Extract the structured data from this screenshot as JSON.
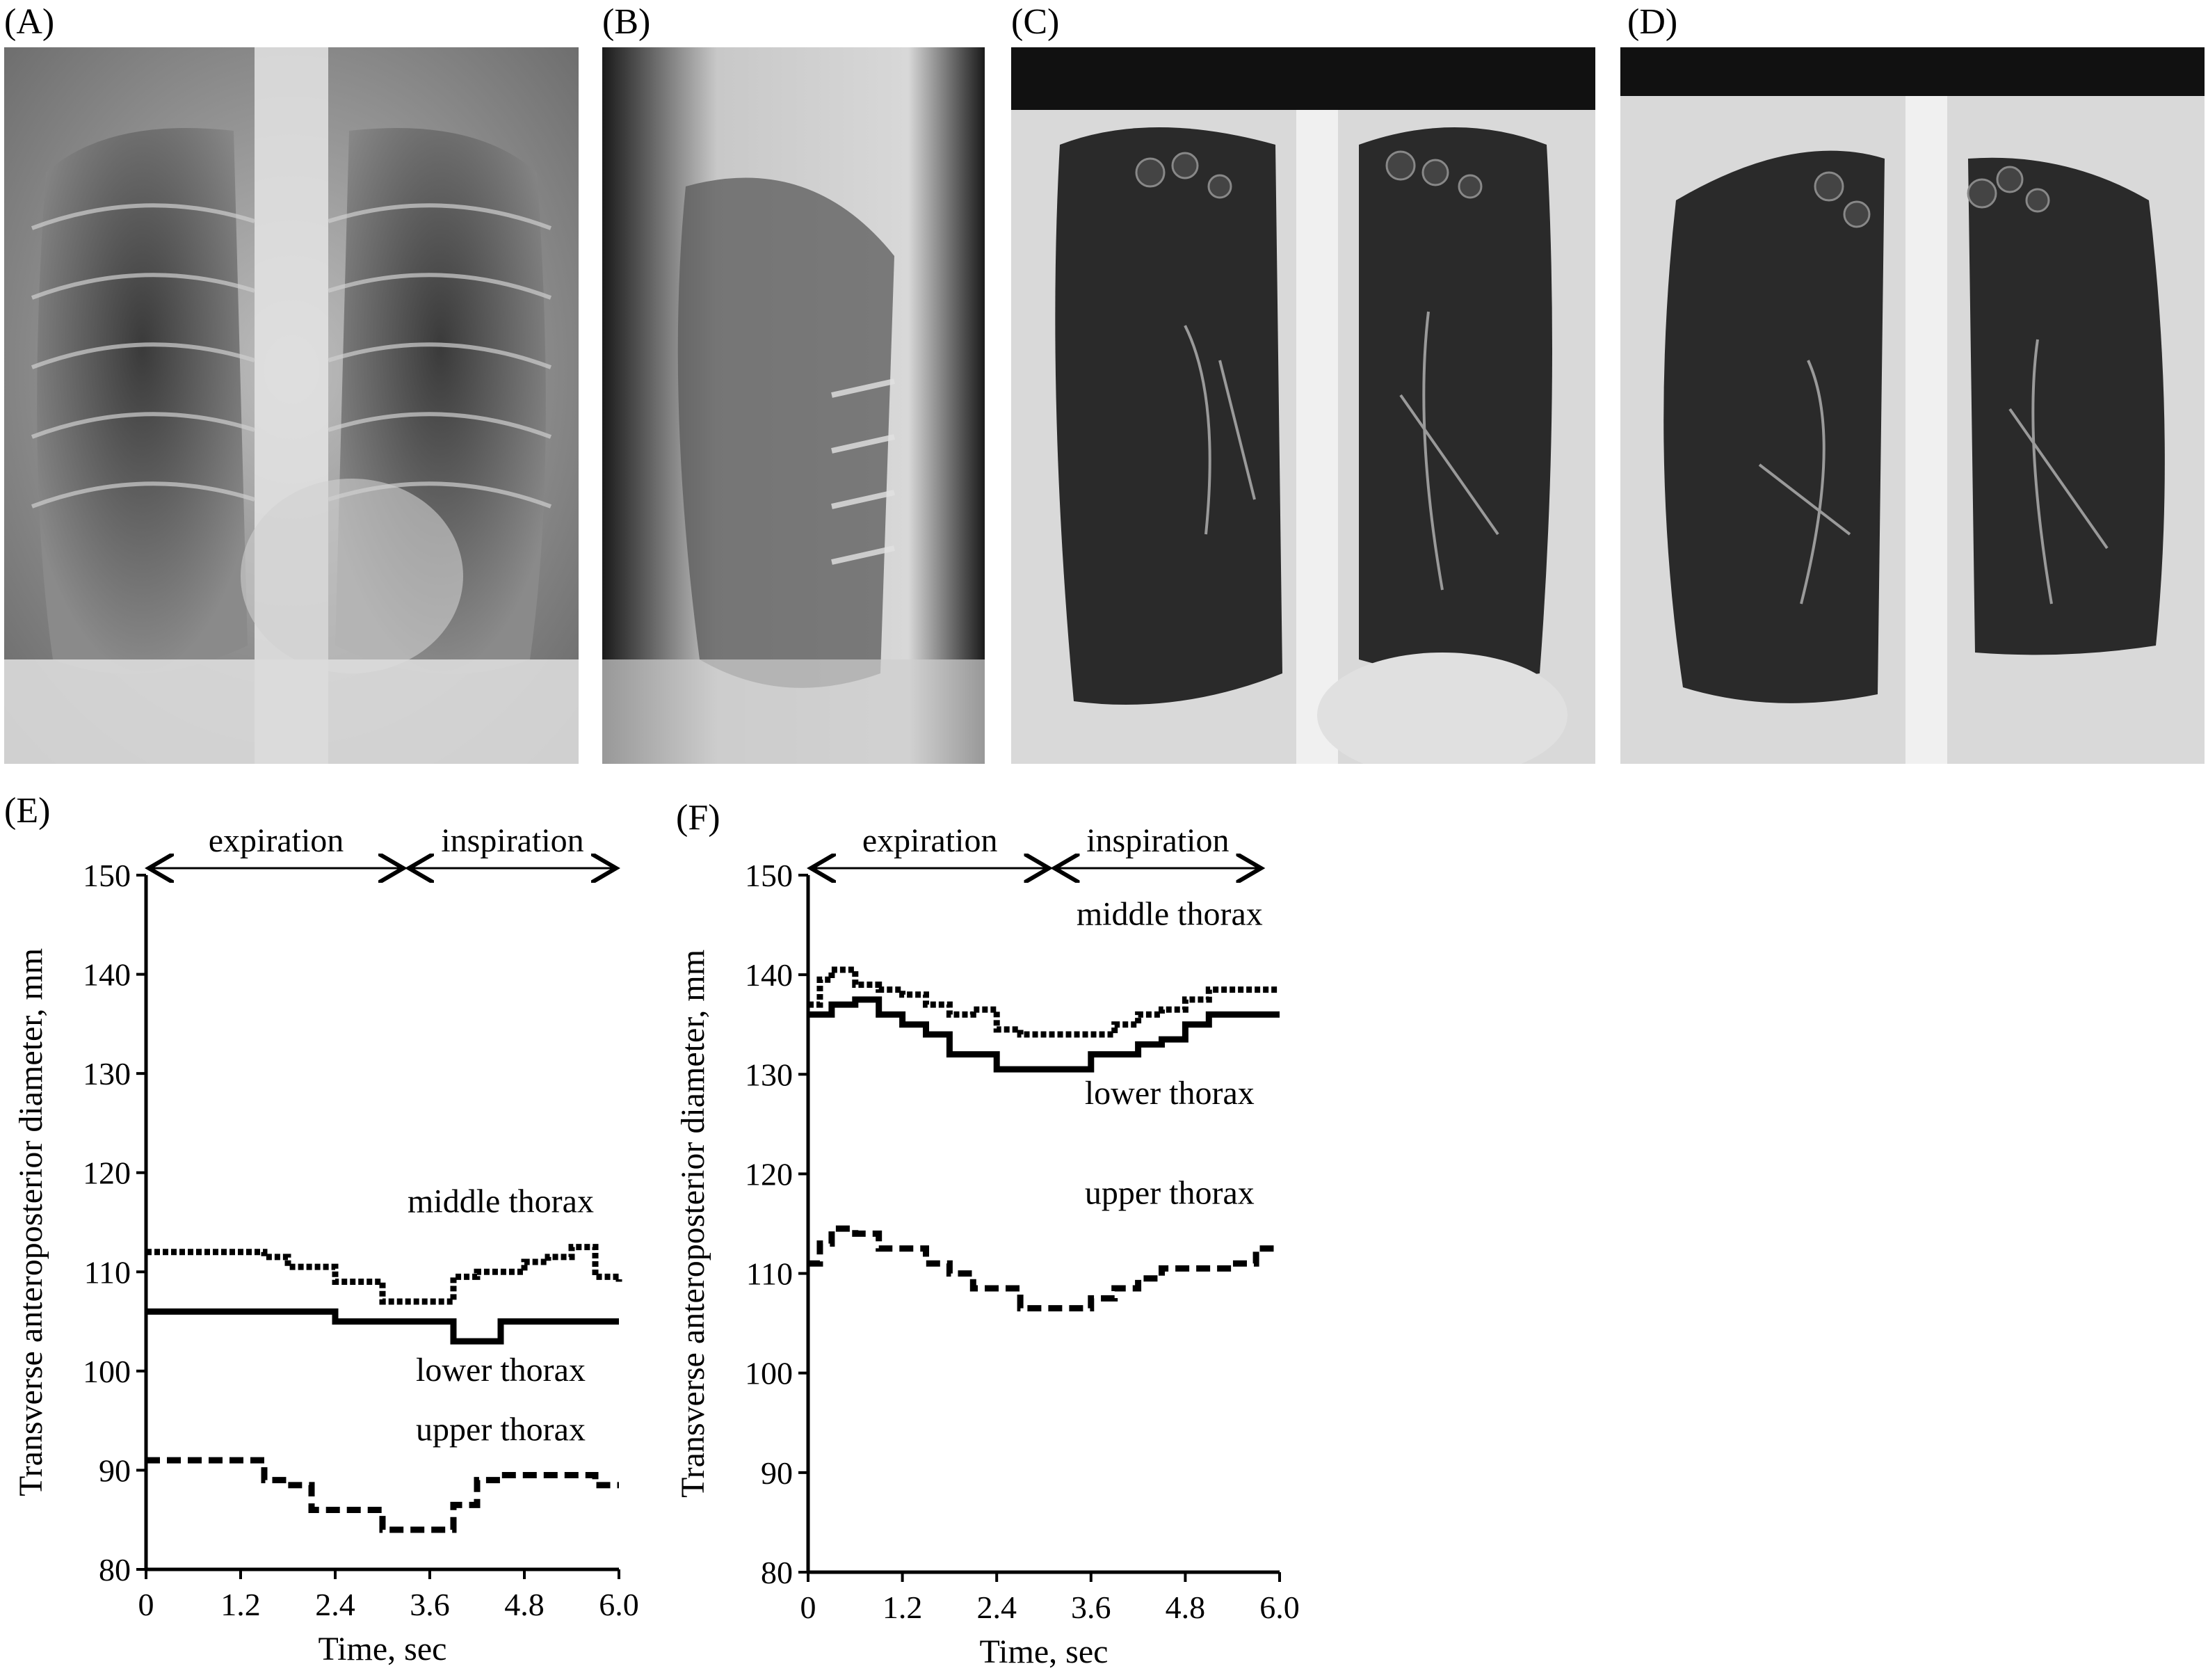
{
  "panels": {
    "a": "(A)",
    "b": "(B)",
    "c": "(C)",
    "d": "(D)",
    "e": "(E)",
    "f": "(F)"
  },
  "colors": {
    "xray_dark": "#1a1a1a",
    "xray_light": "#e6e6e6",
    "ct_lung": "#2a2a2a",
    "ct_tissue": "#d9d9d9"
  },
  "chart_data": [
    {
      "panel": "(E)",
      "type": "line",
      "xlabel": "Time, sec",
      "ylabel": "Transverse anteroposterior diameter, mm",
      "xlim": [
        0,
        6.0
      ],
      "ylim": [
        80,
        150
      ],
      "xticks": [
        "0",
        "1.2",
        "2.4",
        "3.6",
        "4.8",
        "6.0"
      ],
      "yticks": [
        "80",
        "90",
        "100",
        "110",
        "120",
        "130",
        "140",
        "150"
      ],
      "phases": [
        {
          "label": "expiration",
          "x0": 0,
          "x1": 3.3
        },
        {
          "label": "inspiration",
          "x0": 3.3,
          "x1": 6.0
        }
      ],
      "series": [
        {
          "name": "middle thorax",
          "style": "dotted",
          "x": [
            0,
            0.6,
            1.2,
            1.5,
            1.8,
            2.1,
            2.4,
            2.7,
            3.0,
            3.3,
            3.6,
            3.9,
            4.2,
            4.5,
            4.8,
            5.1,
            5.4,
            5.7,
            6.0
          ],
          "y": [
            112,
            112,
            112,
            111.5,
            110.5,
            110.5,
            109,
            109,
            107,
            107,
            107,
            109.5,
            110,
            110,
            111,
            111.5,
            112.5,
            109.5,
            109
          ]
        },
        {
          "name": "lower thorax",
          "style": "solid",
          "x": [
            0,
            0.6,
            1.2,
            1.8,
            2.1,
            2.4,
            2.7,
            3.0,
            3.3,
            3.6,
            3.9,
            4.2,
            4.5,
            4.8,
            5.4,
            6.0
          ],
          "y": [
            106,
            106,
            106,
            106,
            106,
            105,
            105,
            105,
            105,
            105,
            103,
            103,
            105,
            105,
            105,
            105
          ]
        },
        {
          "name": "upper thorax",
          "style": "dashed",
          "x": [
            0,
            0.6,
            1.2,
            1.5,
            1.8,
            2.1,
            2.4,
            2.7,
            3.0,
            3.3,
            3.6,
            3.9,
            4.2,
            4.5,
            4.8,
            5.1,
            5.4,
            5.7,
            6.0
          ],
          "y": [
            91,
            91,
            91,
            89,
            88.5,
            86,
            86,
            86,
            84,
            84,
            84,
            86.5,
            89,
            89.5,
            89.5,
            89.5,
            89.5,
            88.5,
            88.5
          ]
        }
      ],
      "annotations": [
        {
          "text": "middle thorax",
          "x": 4.5,
          "y": 116
        },
        {
          "text": "lower thorax",
          "x": 4.5,
          "y": 99
        },
        {
          "text": "upper thorax",
          "x": 4.5,
          "y": 93
        }
      ]
    },
    {
      "panel": "(F)",
      "type": "line",
      "xlabel": "Time, sec",
      "ylabel": "Transverse anteroposterior diameter, mm",
      "xlim": [
        0,
        6.0
      ],
      "ylim": [
        80,
        150
      ],
      "xticks": [
        "0",
        "1.2",
        "2.4",
        "3.6",
        "4.8",
        "6.0"
      ],
      "yticks": [
        "80",
        "90",
        "100",
        "110",
        "120",
        "130",
        "140",
        "150"
      ],
      "phases": [
        {
          "label": "expiration",
          "x0": 0,
          "x1": 3.1
        },
        {
          "label": "inspiration",
          "x0": 3.1,
          "x1": 5.8
        }
      ],
      "series": [
        {
          "name": "middle thorax",
          "style": "dotted",
          "x": [
            0,
            0.15,
            0.3,
            0.6,
            0.9,
            1.2,
            1.5,
            1.8,
            2.1,
            2.4,
            2.7,
            3.0,
            3.3,
            3.6,
            3.9,
            4.2,
            4.5,
            4.8,
            5.1,
            5.4,
            5.7,
            6.0
          ],
          "y": [
            137,
            139.5,
            140.5,
            139,
            138.5,
            138,
            137,
            136,
            136.5,
            134.5,
            134,
            134,
            134,
            134,
            135,
            136,
            136.5,
            137.5,
            138.5,
            138.5,
            138.5,
            138.5
          ]
        },
        {
          "name": "lower thorax",
          "style": "solid",
          "x": [
            0,
            0.3,
            0.6,
            0.9,
            1.2,
            1.5,
            1.8,
            2.1,
            2.4,
            2.7,
            3.0,
            3.3,
            3.6,
            3.9,
            4.2,
            4.5,
            4.8,
            5.1,
            5.4,
            6.0
          ],
          "y": [
            136,
            137,
            137.5,
            136,
            135,
            134,
            132,
            132,
            130.5,
            130.5,
            130.5,
            130.5,
            132,
            132,
            133,
            133.5,
            135,
            136,
            136,
            136
          ]
        },
        {
          "name": "upper thorax",
          "style": "dashed",
          "x": [
            0,
            0.15,
            0.3,
            0.6,
            0.9,
            1.2,
            1.5,
            1.8,
            2.1,
            2.4,
            2.7,
            3.0,
            3.3,
            3.6,
            3.9,
            4.2,
            4.5,
            4.8,
            5.1,
            5.4,
            5.7,
            6.0
          ],
          "y": [
            111,
            113,
            114.5,
            114,
            112.5,
            112.5,
            111,
            110,
            108.5,
            108.5,
            106.5,
            106.5,
            106.5,
            107.5,
            108.5,
            109.5,
            110.5,
            110.5,
            110.5,
            111,
            112.5,
            112.5
          ]
        }
      ],
      "annotations": [
        {
          "text": "middle thorax",
          "x": 4.6,
          "y": 145
        },
        {
          "text": "lower thorax",
          "x": 4.6,
          "y": 127
        },
        {
          "text": "upper thorax",
          "x": 4.6,
          "y": 117
        }
      ]
    }
  ]
}
